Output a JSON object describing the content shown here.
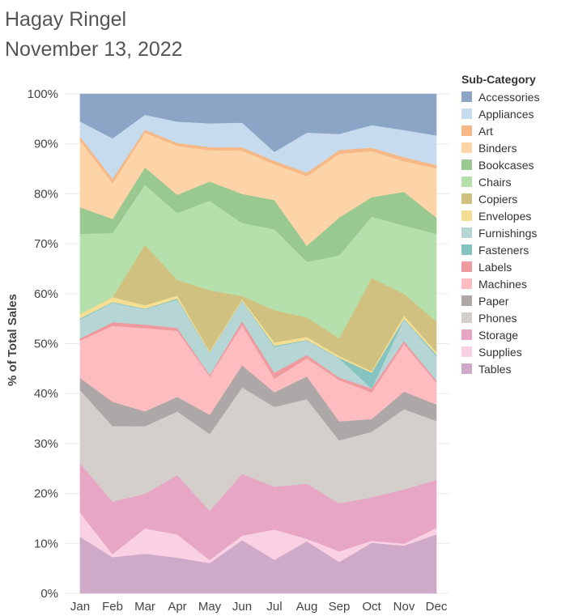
{
  "header": {
    "author": "Hagay Ringel",
    "date": "November 13, 2022"
  },
  "legend": {
    "title": "Sub-Category"
  },
  "chart_data": {
    "type": "area",
    "stacked": true,
    "normalized": true,
    "ylabel": "% of Total Sales",
    "xlabel": "",
    "ylim": [
      0,
      100
    ],
    "yticks": [
      0,
      10,
      20,
      30,
      40,
      50,
      60,
      70,
      80,
      90,
      100
    ],
    "ytick_labels": [
      "0%",
      "10%",
      "20%",
      "30%",
      "40%",
      "50%",
      "60%",
      "70%",
      "80%",
      "90%",
      "100%"
    ],
    "grid": true,
    "legend_position": "right",
    "categories": [
      "Jan",
      "Feb",
      "Mar",
      "Apr",
      "May",
      "Jun",
      "Jul",
      "Aug",
      "Sep",
      "Oct",
      "Nov",
      "Dec"
    ],
    "stack_order_bottom_to_top": [
      "Tables",
      "Supplies",
      "Storage",
      "Phones",
      "Paper",
      "Machines",
      "Labels",
      "Furnishings",
      "Fasteners",
      "Envelopes",
      "Copiers",
      "Chairs",
      "Bookcases",
      "Binders",
      "Art",
      "Appliances",
      "Accessories"
    ],
    "series": [
      {
        "name": "Accessories",
        "color": "#8ca5c6",
        "values": [
          5.5,
          8.8,
          4.2,
          5.5,
          5.8,
          5.7,
          11.5,
          7.7,
          8.0,
          6.1,
          7.2,
          8.3
        ]
      },
      {
        "name": "Appliances",
        "color": "#c6dcee",
        "values": [
          3.0,
          8.0,
          3.0,
          4.2,
          4.7,
          4.9,
          1.8,
          8.0,
          3.2,
          4.4,
          5.4,
          5.9
        ]
      },
      {
        "name": "Art",
        "color": "#f6b887",
        "values": [
          0.8,
          0.9,
          0.6,
          0.6,
          0.6,
          0.7,
          0.7,
          0.7,
          0.8,
          0.7,
          0.8,
          0.7
        ]
      },
      {
        "name": "Binders",
        "color": "#fdd4a8",
        "values": [
          13.3,
          7.1,
          7.0,
          9.7,
          6.2,
          8.6,
          7.1,
          13.9,
          12.7,
          9.0,
          6.1,
          9.8
        ]
      },
      {
        "name": "Bookcases",
        "color": "#99c990",
        "values": [
          5.3,
          2.8,
          3.5,
          3.6,
          3.8,
          5.8,
          5.8,
          3.2,
          7.6,
          3.8,
          6.7,
          3.3
        ]
      },
      {
        "name": "Chairs",
        "color": "#b6e0ab",
        "values": [
          16.0,
          12.7,
          12.1,
          13.3,
          17.7,
          14.5,
          16.1,
          11.1,
          16.6,
          12.0,
          13.6,
          17.5
        ]
      },
      {
        "name": "Copiers",
        "color": "#d1c180",
        "values": [
          0.0,
          0.0,
          12.2,
          3.1,
          12.0,
          0.6,
          6.4,
          3.9,
          3.5,
          18.2,
          4.3,
          6.1
        ]
      },
      {
        "name": "Envelopes",
        "color": "#f3de94",
        "values": [
          0.9,
          1.0,
          0.7,
          0.6,
          0.3,
          0.3,
          0.7,
          0.6,
          0.4,
          0.3,
          0.7,
          0.5
        ]
      },
      {
        "name": "Furnishings",
        "color": "#b5d6d4",
        "values": [
          3.8,
          3.9,
          3.1,
          5.6,
          4.3,
          4.0,
          5.1,
          2.9,
          3.8,
          0.0,
          4.3,
          4.9
        ]
      },
      {
        "name": "Fasteners",
        "color": "#84c3c0",
        "values": [
          0.2,
          0.1,
          0.1,
          0.2,
          0.1,
          0.1,
          0.2,
          0.1,
          0.1,
          3.1,
          0.1,
          0.3
        ]
      },
      {
        "name": "Labels",
        "color": "#ee9a9e",
        "values": [
          0.4,
          0.7,
          0.7,
          0.6,
          0.3,
          0.8,
          1.2,
          0.7,
          0.5,
          0.8,
          0.6,
          0.4
        ]
      },
      {
        "name": "Machines",
        "color": "#fdbcbf",
        "values": [
          7.5,
          15.1,
          16.8,
          13.1,
          7.6,
          8.0,
          2.7,
          3.6,
          8.3,
          5.2,
          9.5,
          4.4
        ]
      },
      {
        "name": "Paper",
        "color": "#ada8a7",
        "values": [
          2.4,
          4.8,
          3.0,
          2.9,
          3.8,
          4.4,
          2.9,
          4.5,
          3.8,
          2.5,
          3.5,
          3.3
        ]
      },
      {
        "name": "Phones",
        "color": "#d5cfcc",
        "values": [
          14.6,
          15.0,
          13.6,
          12.6,
          15.2,
          17.2,
          15.9,
          16.9,
          12.6,
          12.8,
          16.0,
          11.8
        ]
      },
      {
        "name": "Storage",
        "color": "#e6a6c4",
        "values": [
          9.9,
          10.4,
          7.0,
          11.8,
          9.7,
          12.3,
          8.5,
          11.0,
          9.6,
          8.5,
          10.8,
          9.6
        ]
      },
      {
        "name": "Supplies",
        "color": "#fad0e3",
        "values": [
          4.8,
          0.6,
          5.1,
          4.6,
          0.6,
          0.9,
          6.0,
          0.5,
          2.1,
          0.4,
          0.4,
          1.3
        ]
      },
      {
        "name": "Tables",
        "color": "#cea9c8",
        "values": [
          11.3,
          7.2,
          8.0,
          7.1,
          6.0,
          10.6,
          6.7,
          10.4,
          6.3,
          9.9,
          9.5,
          11.8
        ]
      }
    ]
  }
}
